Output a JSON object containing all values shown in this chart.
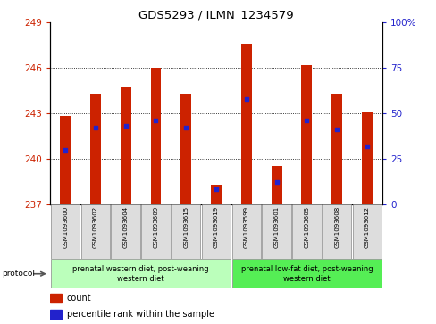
{
  "title": "GDS5293 / ILMN_1234579",
  "samples": [
    "GSM1093600",
    "GSM1093602",
    "GSM1093604",
    "GSM1093609",
    "GSM1093615",
    "GSM1093619",
    "GSM1093599",
    "GSM1093601",
    "GSM1093605",
    "GSM1093608",
    "GSM1093612"
  ],
  "bar_tops": [
    242.8,
    244.3,
    244.7,
    246.0,
    244.3,
    238.3,
    247.6,
    239.5,
    246.2,
    244.3,
    243.1
  ],
  "bar_base": 237.0,
  "pct_ranks": [
    30,
    42,
    43,
    46,
    42,
    8,
    58,
    12,
    46,
    41,
    32
  ],
  "ylim_left": [
    237,
    249
  ],
  "yticks_left": [
    237,
    240,
    243,
    246,
    249
  ],
  "ylim_right": [
    0,
    100
  ],
  "yticks_right": [
    0,
    25,
    50,
    75,
    100
  ],
  "bar_color": "#cc2200",
  "marker_color": "#2222cc",
  "group1_label": "prenatal western diet, post-weaning\nwestern diet",
  "group2_label": "prenatal low-fat diet, post-weaning\nwestern diet",
  "group1_color": "#bbffbb",
  "group2_color": "#55ee55",
  "protocol_label": "protocol",
  "group1_count": 6,
  "group2_count": 5,
  "legend_count_label": "count",
  "legend_pct_label": "percentile rank within the sample",
  "bg_label_row": "#dddddd",
  "grid_lines": [
    240,
    243,
    246
  ],
  "bar_width": 0.35
}
